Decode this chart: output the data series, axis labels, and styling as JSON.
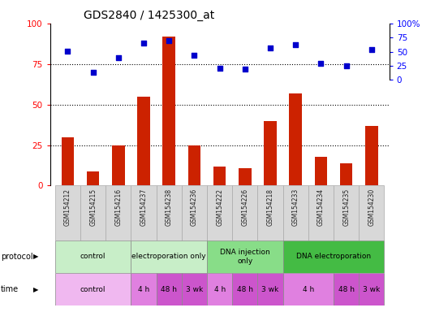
{
  "title": "GDS2840 / 1425300_at",
  "samples": [
    "GSM154212",
    "GSM154215",
    "GSM154216",
    "GSM154237",
    "GSM154238",
    "GSM154236",
    "GSM154222",
    "GSM154226",
    "GSM154218",
    "GSM154233",
    "GSM154234",
    "GSM154235",
    "GSM154230"
  ],
  "counts": [
    30,
    9,
    25,
    55,
    92,
    25,
    12,
    11,
    40,
    57,
    18,
    14,
    37
  ],
  "percentiles": [
    51,
    13,
    40,
    65,
    70,
    44,
    20,
    19,
    57,
    63,
    29,
    25,
    53
  ],
  "proto_data": [
    {
      "label": "control",
      "start": 0,
      "end": 2,
      "color": "#c8eec8"
    },
    {
      "label": "electroporation only",
      "start": 3,
      "end": 5,
      "color": "#c8eec8"
    },
    {
      "label": "DNA injection\nonly",
      "start": 6,
      "end": 8,
      "color": "#88dd88"
    },
    {
      "label": "DNA electroporation",
      "start": 9,
      "end": 12,
      "color": "#44bb44"
    }
  ],
  "time_data": [
    {
      "label": "control",
      "start": 0,
      "end": 2,
      "color": "#f0b8f0"
    },
    {
      "label": "4 h",
      "start": 3,
      "end": 3,
      "color": "#e080e0"
    },
    {
      "label": "48 h",
      "start": 4,
      "end": 4,
      "color": "#cc55cc"
    },
    {
      "label": "3 wk",
      "start": 5,
      "end": 5,
      "color": "#cc55cc"
    },
    {
      "label": "4 h",
      "start": 6,
      "end": 6,
      "color": "#e080e0"
    },
    {
      "label": "48 h",
      "start": 7,
      "end": 7,
      "color": "#cc55cc"
    },
    {
      "label": "3 wk",
      "start": 8,
      "end": 8,
      "color": "#cc55cc"
    },
    {
      "label": "4 h",
      "start": 9,
      "end": 10,
      "color": "#e080e0"
    },
    {
      "label": "48 h",
      "start": 11,
      "end": 11,
      "color": "#cc55cc"
    },
    {
      "label": "3 wk",
      "start": 12,
      "end": 12,
      "color": "#cc55cc"
    }
  ],
  "bar_color": "#cc2200",
  "dot_color": "#0000cc",
  "ylim": [
    0,
    100
  ],
  "bg_color": "#ffffff",
  "sample_box_color": "#d8d8d8"
}
